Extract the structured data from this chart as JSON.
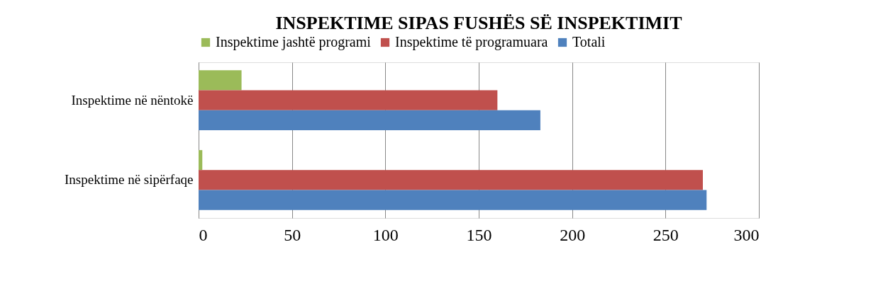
{
  "chart_data": {
    "type": "bar",
    "orientation": "horizontal",
    "title": "INSPEKTIME SIPAS FUSHËS SË INSPEKTIMIT",
    "categories": [
      "Inspektime në nëntokë",
      "Inspektime në sipërfaqe"
    ],
    "series": [
      {
        "name": "Inspektime jashtë programi",
        "color": "#9bbb59",
        "values": [
          23,
          2
        ]
      },
      {
        "name": "Inspektime të programuara",
        "color": "#c0504d",
        "values": [
          160,
          270
        ]
      },
      {
        "name": "Totali",
        "color": "#4f81bd",
        "values": [
          183,
          272
        ]
      }
    ],
    "xlim": [
      0,
      300
    ],
    "xticks": [
      0,
      50,
      100,
      150,
      200,
      250,
      300
    ],
    "grid": "x",
    "legend": "top"
  }
}
